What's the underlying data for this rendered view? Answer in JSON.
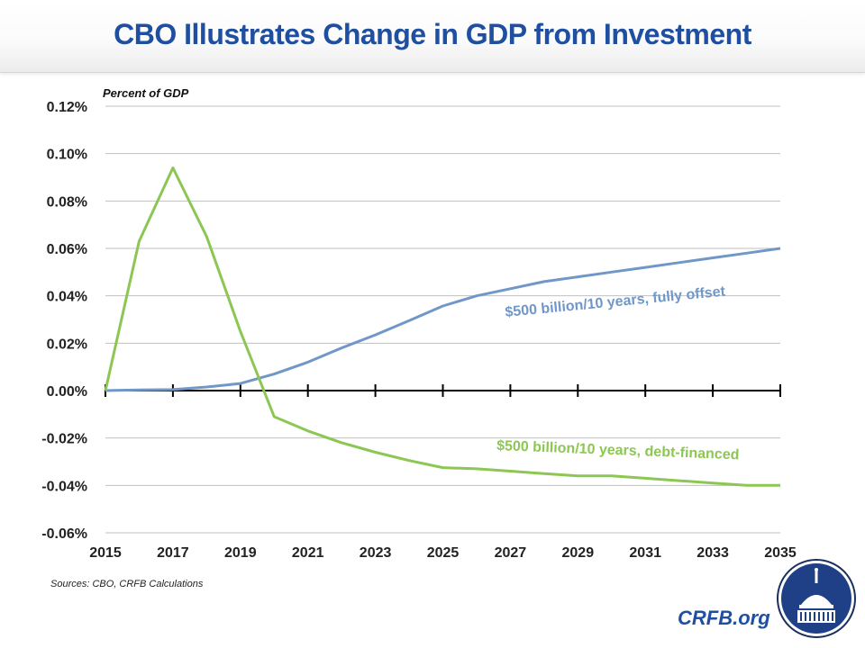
{
  "header": {
    "title": "CBO Illustrates Change in GDP from Investment"
  },
  "footer": {
    "sources": "Sources:  CBO, CRFB Calculations",
    "brand": "CRFB.org",
    "logo_icon": "capitol-dome-icon"
  },
  "colors": {
    "title": "#1f4fa0",
    "fully_offset": "#7097c8",
    "debt_financed": "#8cc653",
    "grid": "#bfbfbf",
    "axis": "#000000"
  },
  "chart_data": {
    "type": "line",
    "title": "CBO Illustrates Change in GDP from Investment",
    "xlabel": "",
    "ylabel": "Percent of GDP",
    "x": [
      2015,
      2016,
      2017,
      2018,
      2019,
      2020,
      2021,
      2022,
      2023,
      2024,
      2025,
      2026,
      2027,
      2028,
      2029,
      2030,
      2031,
      2032,
      2033,
      2034,
      2035
    ],
    "xlim": [
      2015,
      2035
    ],
    "ylim": [
      -0.06,
      0.12
    ],
    "x_ticks": [
      "2015",
      "2017",
      "2019",
      "2021",
      "2023",
      "2025",
      "2027",
      "2029",
      "2031",
      "2033",
      "2035"
    ],
    "y_ticks": [
      {
        "value": 0.12,
        "label": "0.12%"
      },
      {
        "value": 0.1,
        "label": "0.10%"
      },
      {
        "value": 0.08,
        "label": "0.08%"
      },
      {
        "value": 0.06,
        "label": "0.06%"
      },
      {
        "value": 0.04,
        "label": "0.04%"
      },
      {
        "value": 0.02,
        "label": "0.02%"
      },
      {
        "value": 0.0,
        "label": "0.00%"
      },
      {
        "value": -0.02,
        "label": "-0.02%"
      },
      {
        "value": -0.04,
        "label": "-0.04%"
      },
      {
        "value": -0.06,
        "label": "-0.06%"
      }
    ],
    "grid": true,
    "legend": "inline-labels",
    "series": [
      {
        "name": "$500 billion/10 years, fully offset",
        "color": "#7097c8",
        "values": [
          0.0,
          0.0003,
          0.0004,
          0.0015,
          0.003,
          0.007,
          0.012,
          0.018,
          0.0235,
          0.0295,
          0.0357,
          0.04,
          0.043,
          0.046,
          0.048,
          0.05,
          0.052,
          0.054,
          0.056,
          0.058,
          0.06
        ]
      },
      {
        "name": "$500 billion/10 years, debt-financed",
        "color": "#8cc653",
        "values": [
          0.0,
          0.063,
          0.094,
          0.065,
          0.025,
          -0.011,
          -0.017,
          -0.022,
          -0.026,
          -0.0295,
          -0.0325,
          -0.033,
          -0.034,
          -0.035,
          -0.036,
          -0.036,
          -0.037,
          -0.038,
          -0.039,
          -0.04,
          -0.04
        ]
      }
    ]
  }
}
